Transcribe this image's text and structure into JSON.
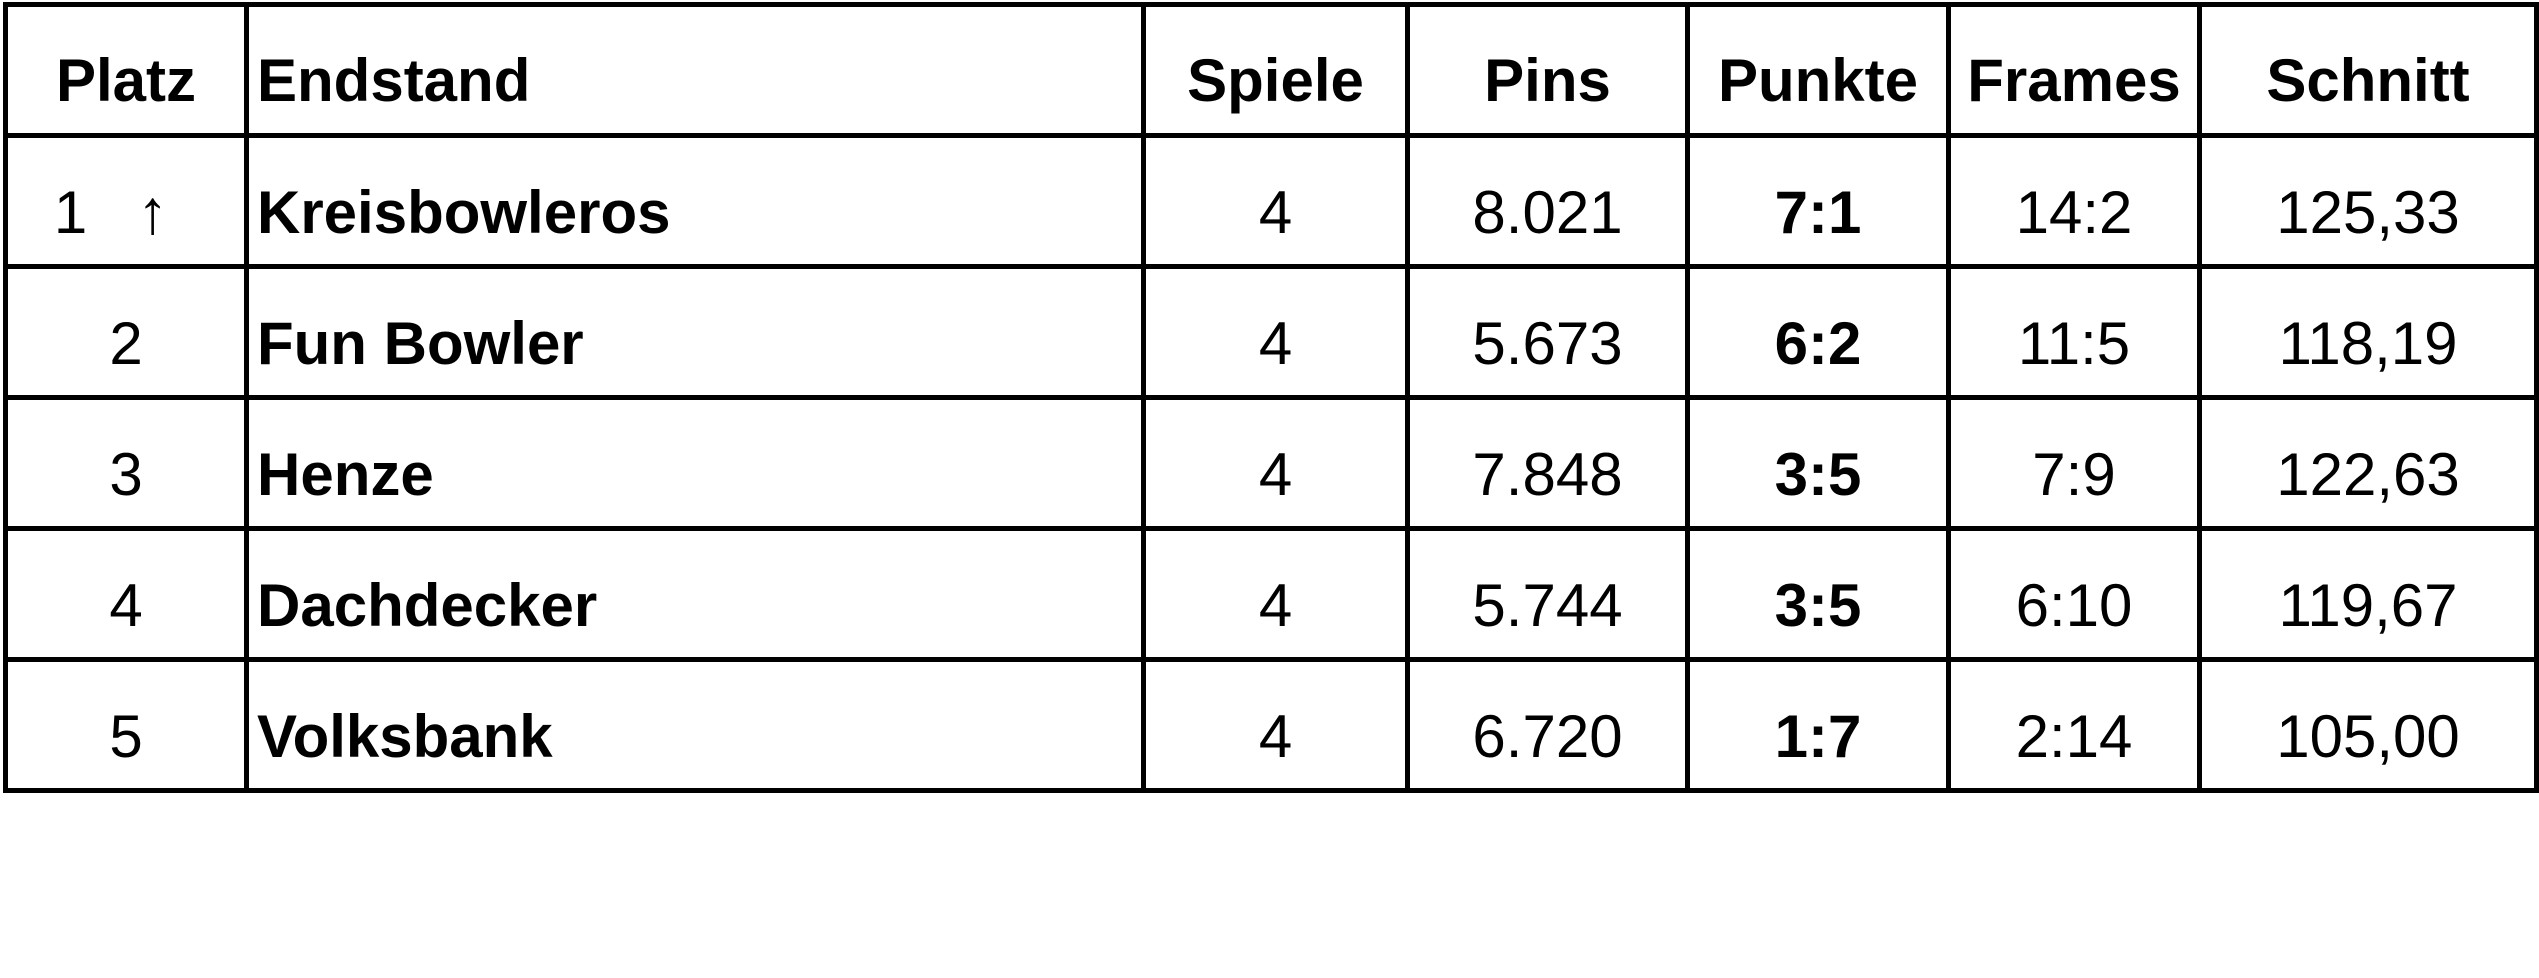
{
  "table": {
    "headers": [
      "Platz",
      "Endstand",
      "Spiele",
      "Pins",
      "Punkte",
      "Frames",
      "Schnitt"
    ],
    "rows": [
      {
        "platz": "1",
        "trend": "↑",
        "team": "Kreisbowleros",
        "spiele": "4",
        "pins": "8.021",
        "punkte": "7:1",
        "frames": "14:2",
        "schnitt": "125,33"
      },
      {
        "platz": "2",
        "team": "Fun Bowler",
        "spiele": "4",
        "pins": "5.673",
        "punkte": "6:2",
        "frames": "11:5",
        "schnitt": "118,19"
      },
      {
        "platz": "3",
        "team": "Henze",
        "spiele": "4",
        "pins": "7.848",
        "punkte": "3:5",
        "frames": "7:9",
        "schnitt": "122,63"
      },
      {
        "platz": "4",
        "team": "Dachdecker",
        "spiele": "4",
        "pins": "5.744",
        "punkte": "3:5",
        "frames": "6:10",
        "schnitt": "119,67"
      },
      {
        "platz": "5",
        "team": "Volksbank",
        "spiele": "4",
        "pins": "6.720",
        "punkte": "1:7",
        "frames": "2:14",
        "schnitt": "105,00"
      }
    ]
  }
}
